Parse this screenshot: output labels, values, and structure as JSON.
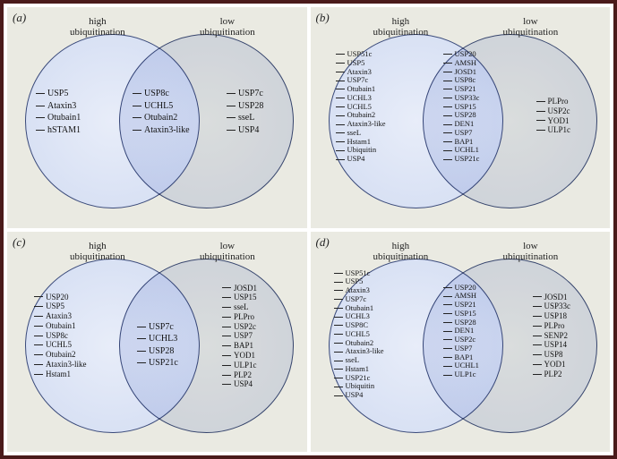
{
  "frame": {
    "border_color": "#4a1a1a",
    "bg": "#ffffff"
  },
  "panel_bg": "#eaeae2",
  "circle_colors": {
    "left_fill": "#d9e2f5",
    "right_fill": "#e3e8f7",
    "stroke": "#3a4a7a"
  },
  "labels": {
    "high": "high\nubiquitination",
    "low": "low\nubiquitination"
  },
  "panels": {
    "a": {
      "tag": "(a)",
      "left": [
        "USP5",
        "Ataxin3",
        "Otubain1",
        "hSTAM1"
      ],
      "center": [
        "USP8c",
        "UCHL5",
        "Otubain2",
        "Ataxin3-like"
      ],
      "right": [
        "USP7c",
        "USP28",
        "sseL",
        "USP4"
      ]
    },
    "b": {
      "tag": "(b)",
      "left": [
        "USP51c",
        "USP5",
        "Ataxin3",
        "USP7c",
        "Otubain1",
        "UCHL3",
        "UCHL5",
        "Otubain2",
        "Ataxin3-like",
        "sseL",
        "Hstam1",
        "Ubiquitin",
        "USP4"
      ],
      "center": [
        "USP20",
        "AMSH",
        "JOSD1",
        "USP8c",
        "USP21",
        "USP33c",
        "USP15",
        "USP28",
        "DEN1",
        "USP7",
        "BAP1",
        "UCHL1",
        "USP21c"
      ],
      "right": [
        "PLPro",
        "USP2c",
        "YOD1",
        "ULP1c"
      ]
    },
    "c": {
      "tag": "(c)",
      "left": [
        "USP20",
        "USP5",
        "Ataxin3",
        "Otubain1",
        "USP8c",
        "UCHL5",
        "Otubain2",
        "Ataxin3-like",
        "Hstam1"
      ],
      "center": [
        "USP7c",
        "UCHL3",
        "USP28",
        "USP21c"
      ],
      "right": [
        "JOSD1",
        "USP15",
        "sseL",
        "PLPro",
        "USP2c",
        "USP7",
        "BAP1",
        "YOD1",
        "ULP1c",
        "PLP2",
        "USP4"
      ]
    },
    "d": {
      "tag": "(d)",
      "left": [
        "USP51c",
        "USP5",
        "Ataxin3",
        "USP7c",
        "Otubain1",
        "UCHL3",
        "USP8C",
        "UCHL5",
        "Otubain2",
        "Ataxin3-like",
        "sseL",
        "Hstam1",
        "USP21c",
        "Ubiquitin",
        "USP4"
      ],
      "center": [
        "USP20",
        "AMSH",
        "USP21",
        "USP15",
        "USP28",
        "DEN1",
        "USP2c",
        "USP7",
        "BAP1",
        "UCHL1",
        "ULP1c"
      ],
      "right": [
        "JOSD1",
        "USP33c",
        "USP18",
        "PLPro",
        "SENP2",
        "USP14",
        "USP8",
        "YOD1",
        "PLP2"
      ]
    }
  }
}
